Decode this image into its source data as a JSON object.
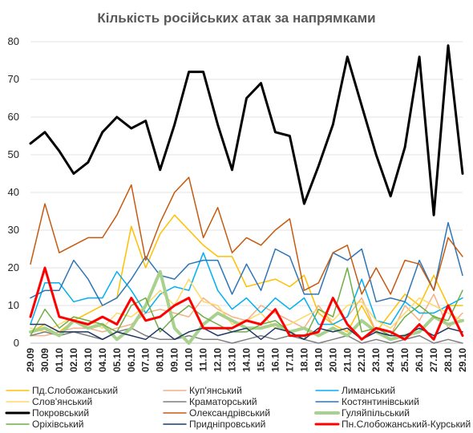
{
  "chart_data": {
    "type": "line",
    "title": "Кількість російських атак за напрямками",
    "xlabel": "",
    "ylabel": "",
    "ylim": [
      0,
      80
    ],
    "yticks": [
      0,
      10,
      20,
      30,
      40,
      50,
      60,
      70,
      80
    ],
    "grid": true,
    "legend_position": "bottom",
    "categories": [
      "29.09",
      "30.09",
      "01.10",
      "02.10",
      "03.10",
      "04.10",
      "05.10",
      "06.10",
      "07.10",
      "08.10",
      "09.10",
      "10.10",
      "11.10",
      "12.10",
      "13.10",
      "14.10",
      "15.10",
      "16.10",
      "17.10",
      "18.10",
      "19.10",
      "20.10",
      "21.10",
      "22.10",
      "23.10",
      "24.10",
      "25.10",
      "26.10",
      "27.10",
      "28.10",
      "29.10"
    ],
    "x_tick_labels": [
      "29.09",
      "30.09",
      "01.10",
      "02.10",
      "03.10",
      "04.10",
      "05.10",
      "06.10",
      "07.10",
      "08.10",
      "09.10",
      "10.10",
      "11.10",
      "12.10",
      "13.10",
      "14.10",
      "15.10",
      "16.10",
      "17.10",
      "18.10",
      "19.10",
      "20.10",
      "21.10",
      "22.10",
      "23.10",
      "24.10",
      "25.10",
      "26.10",
      "27.10",
      "28.10",
      "29.10"
    ],
    "series": [
      {
        "name": "Пд.Слобожанський",
        "color": "#FFC000",
        "width": 1.5,
        "values": [
          3,
          5,
          3,
          6,
          8,
          10,
          12,
          31,
          20,
          29,
          34,
          30,
          26,
          23,
          23,
          15,
          16,
          17,
          15,
          18,
          8,
          5,
          3,
          10,
          3,
          8,
          13,
          10,
          18,
          10,
          10
        ]
      },
      {
        "name": "Куп'янський",
        "color": "#F4B183",
        "width": 1.5,
        "values": [
          2,
          2,
          3,
          4,
          4,
          3,
          4,
          5,
          8,
          9,
          8,
          7,
          12,
          9,
          7,
          6,
          10,
          8,
          6,
          4,
          10,
          5,
          7,
          12,
          3,
          2,
          10,
          6,
          13,
          4,
          8
        ]
      },
      {
        "name": "Лиманський",
        "color": "#00B0F0",
        "width": 1.5,
        "values": [
          5,
          16,
          16,
          11,
          12,
          12,
          19,
          14,
          8,
          13,
          15,
          14,
          24,
          14,
          9,
          12,
          8,
          12,
          9,
          12,
          5,
          5,
          7,
          17,
          6,
          5,
          11,
          8,
          8,
          10,
          12
        ]
      },
      {
        "name": "Слов'янський",
        "color": "#FFD966",
        "width": 1.5,
        "values": [
          4,
          3,
          5,
          7,
          6,
          4,
          8,
          7,
          10,
          14,
          10,
          17,
          11,
          10,
          5,
          6,
          8,
          4,
          5,
          7,
          9,
          6,
          10,
          11,
          6,
          4,
          8,
          12,
          10,
          8,
          6
        ]
      },
      {
        "name": "Краматорський",
        "color": "#7F7F7F",
        "width": 1.5,
        "values": [
          2,
          3,
          2,
          3,
          2,
          1,
          3,
          4,
          2,
          1,
          1,
          2,
          1,
          1,
          0,
          1,
          2,
          1,
          2,
          1,
          0,
          1,
          2,
          0,
          1,
          0,
          1,
          2,
          0,
          1,
          0
        ]
      },
      {
        "name": "Костянтинівський",
        "color": "#2E75B6",
        "width": 1.5,
        "values": [
          12,
          14,
          14,
          22,
          17,
          10,
          12,
          17,
          23,
          18,
          17,
          21,
          22,
          22,
          13,
          21,
          14,
          25,
          23,
          13,
          13,
          24,
          22,
          25,
          11,
          12,
          11,
          22,
          14,
          32,
          18
        ]
      },
      {
        "name": "Покровський",
        "color": "#000000",
        "width": 3,
        "values": [
          53,
          56,
          51,
          45,
          48,
          56,
          60,
          57,
          59,
          46,
          58,
          72,
          72,
          58,
          46,
          65,
          69,
          56,
          55,
          37,
          47,
          58,
          76,
          63,
          50,
          39,
          52,
          76,
          34,
          79,
          45
        ]
      },
      {
        "name": "Олександрівський",
        "color": "#C55A11",
        "width": 1.5,
        "values": [
          21,
          37,
          24,
          26,
          28,
          28,
          34,
          42,
          22,
          32,
          40,
          44,
          28,
          36,
          24,
          28,
          26,
          30,
          33,
          14,
          16,
          24,
          26,
          13,
          20,
          13,
          22,
          21,
          14,
          28,
          23
        ]
      },
      {
        "name": "Гуляйпільський",
        "color": "#A9D18E",
        "width": 4,
        "values": [
          3,
          4,
          2,
          6,
          4,
          5,
          1,
          4,
          10,
          19,
          4,
          0,
          5,
          8,
          6,
          4,
          4,
          5,
          3,
          4,
          2,
          4,
          2,
          6,
          3,
          1,
          2,
          3,
          7,
          5,
          6
        ]
      },
      {
        "name": "Оріхівський",
        "color": "#70AD47",
        "width": 1.5,
        "values": [
          2,
          9,
          4,
          7,
          6,
          5,
          3,
          10,
          12,
          3,
          7,
          10,
          7,
          5,
          3,
          3,
          5,
          6,
          3,
          1,
          9,
          7,
          20,
          3,
          4,
          2,
          7,
          10,
          7,
          6,
          14
        ]
      },
      {
        "name": "Придніпровський",
        "color": "#1F3864",
        "width": 1.5,
        "values": [
          5,
          5,
          3,
          3,
          3,
          1,
          3,
          2,
          1,
          4,
          1,
          3,
          4,
          2,
          3,
          4,
          1,
          4,
          3,
          1,
          4,
          3,
          4,
          1,
          3,
          2,
          2,
          4,
          2,
          4,
          3
        ]
      },
      {
        "name": "Пн.Слобожанський-Курський",
        "color": "#FF0000",
        "width": 3,
        "values": [
          7,
          20,
          7,
          6,
          5,
          7,
          5,
          12,
          6,
          7,
          10,
          12,
          4,
          4,
          4,
          6,
          5,
          9,
          2,
          2,
          3,
          12,
          5,
          1,
          4,
          3,
          1,
          5,
          1,
          10,
          2
        ]
      }
    ]
  }
}
